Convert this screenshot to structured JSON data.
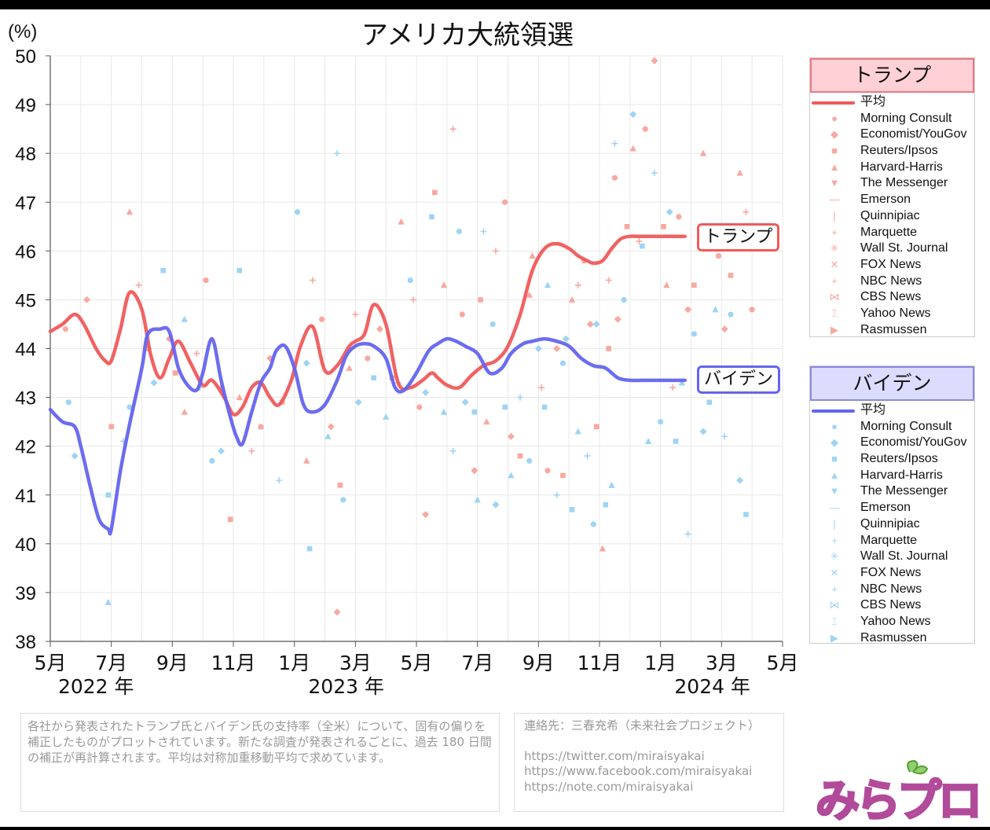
{
  "chart_data": {
    "type": "line",
    "title": "アメリカ大統領選",
    "ylabel": "(%)",
    "ylim": [
      38,
      50
    ],
    "yticks": [
      38,
      39,
      40,
      41,
      42,
      43,
      44,
      45,
      46,
      47,
      48,
      49,
      50
    ],
    "x_tick_labels": [
      "5月",
      "7月",
      "9月",
      "11月",
      "1月",
      "3月",
      "5月",
      "7月",
      "9月",
      "11月",
      "1月",
      "3月",
      "5月"
    ],
    "x_tick_months": [
      0,
      2,
      4,
      6,
      8,
      10,
      12,
      14,
      16,
      18,
      20,
      22,
      24
    ],
    "year_labels": [
      {
        "label": "2022 年",
        "month": 1.5
      },
      {
        "label": "2023 年",
        "month": 1.5
      },
      {
        "label": "2024 年",
        "month": 1.5
      }
    ],
    "year_label_months": [
      1.5,
      9.7,
      21.7
    ],
    "x_range_months": [
      0,
      24
    ],
    "x_note": "months since May 2022",
    "series": [
      {
        "name": "トランプ 平均",
        "color": "#f05a5a",
        "x": [
          0,
          0.4,
          0.8,
          1.1,
          1.5,
          1.8,
          2.0,
          2.3,
          2.6,
          3.0,
          3.3,
          3.6,
          3.9,
          4.2,
          4.6,
          5.0,
          5.3,
          5.7,
          6.0,
          6.3,
          6.6,
          6.9,
          7.2,
          7.5,
          7.9,
          8.2,
          8.6,
          9.0,
          9.4,
          9.8,
          10.0,
          10.3,
          10.6,
          11.0,
          11.4,
          11.8,
          12.2,
          12.5,
          12.7,
          13.0,
          13.4,
          13.8,
          14.2,
          14.6,
          15.0,
          15.4,
          15.8,
          16.2,
          16.6,
          17.0,
          17.3,
          17.6,
          17.8,
          18.1,
          18.4,
          18.7,
          19.0,
          19.3,
          19.6,
          19.9,
          20.2,
          20.5,
          20.8
        ],
        "values": [
          44.35,
          44.5,
          44.7,
          44.5,
          44.0,
          43.75,
          43.75,
          44.4,
          45.15,
          44.8,
          43.85,
          43.4,
          43.8,
          44.15,
          43.7,
          43.25,
          43.35,
          43.0,
          42.65,
          42.8,
          43.2,
          43.3,
          43.0,
          42.85,
          43.35,
          44.05,
          44.45,
          43.55,
          43.65,
          44.05,
          44.15,
          44.3,
          44.9,
          44.5,
          43.3,
          43.2,
          43.35,
          43.5,
          43.4,
          43.25,
          43.2,
          43.45,
          43.65,
          43.75,
          44.05,
          44.7,
          45.6,
          46.05,
          46.15,
          46.05,
          45.9,
          45.8,
          45.75,
          45.8,
          46.05,
          46.25,
          46.3,
          46.3,
          46.3,
          46.3,
          46.3,
          46.3,
          46.3
        ]
      },
      {
        "name": "バイデン 平均",
        "color": "#6464f0",
        "x": [
          0,
          0.4,
          0.8,
          1.0,
          1.3,
          1.6,
          1.9,
          2.0,
          2.3,
          2.6,
          3.0,
          3.2,
          3.6,
          3.9,
          4.2,
          4.5,
          4.8,
          5.0,
          5.3,
          5.6,
          5.9,
          6.1,
          6.3,
          6.6,
          6.9,
          7.2,
          7.4,
          7.7,
          8.0,
          8.3,
          8.6,
          9.0,
          9.4,
          9.7,
          10.0,
          10.3,
          10.6,
          11.0,
          11.3,
          11.6,
          12.0,
          12.4,
          12.7,
          13.0,
          13.3,
          13.6,
          14.0,
          14.4,
          14.8,
          15.1,
          15.5,
          15.8,
          16.2,
          16.6,
          17.0,
          17.4,
          17.8,
          18.2,
          18.6,
          19.0,
          19.4,
          19.8,
          20.2,
          20.5,
          20.8
        ],
        "values": [
          42.75,
          42.5,
          42.4,
          42.0,
          41.2,
          40.5,
          40.3,
          40.3,
          41.5,
          42.45,
          43.6,
          44.3,
          44.4,
          44.35,
          43.6,
          43.25,
          43.15,
          43.5,
          44.2,
          43.35,
          42.6,
          42.2,
          42.05,
          42.7,
          43.3,
          43.6,
          43.95,
          44.05,
          43.6,
          42.85,
          42.7,
          42.85,
          43.35,
          43.85,
          44.05,
          44.1,
          44.05,
          43.8,
          43.2,
          43.15,
          43.5,
          43.95,
          44.1,
          44.2,
          44.15,
          44.05,
          43.9,
          43.5,
          43.6,
          43.9,
          44.1,
          44.15,
          44.2,
          44.15,
          44.05,
          43.8,
          43.65,
          43.6,
          43.4,
          43.35,
          43.35,
          43.35,
          43.35,
          43.35,
          43.35
        ]
      }
    ],
    "scatter_note": "individual pollster points (pale markers)",
    "trump_points": [
      [
        0.5,
        44.4
      ],
      [
        1.2,
        45.0
      ],
      [
        2.0,
        42.4
      ],
      [
        2.6,
        46.8
      ],
      [
        2.9,
        45.3
      ],
      [
        3.2,
        44.0
      ],
      [
        3.9,
        44.2
      ],
      [
        4.1,
        43.5
      ],
      [
        4.4,
        42.7
      ],
      [
        4.8,
        43.9
      ],
      [
        5.1,
        45.4
      ],
      [
        5.6,
        43.2
      ],
      [
        5.9,
        40.5
      ],
      [
        6.2,
        43.0
      ],
      [
        6.6,
        41.9
      ],
      [
        6.9,
        42.4
      ],
      [
        7.2,
        43.8
      ],
      [
        7.6,
        42.9
      ],
      [
        8.4,
        41.7
      ],
      [
        8.6,
        45.4
      ],
      [
        8.9,
        44.6
      ],
      [
        9.2,
        42.4
      ],
      [
        9.5,
        41.2
      ],
      [
        9.8,
        43.6
      ],
      [
        10.0,
        44.7
      ],
      [
        10.4,
        43.8
      ],
      [
        10.8,
        44.4
      ],
      [
        11.2,
        43.4
      ],
      [
        11.5,
        46.6
      ],
      [
        11.9,
        45.0
      ],
      [
        12.1,
        42.8
      ],
      [
        12.3,
        40.6
      ],
      [
        12.6,
        47.2
      ],
      [
        12.9,
        45.3
      ],
      [
        13.2,
        48.5
      ],
      [
        13.5,
        44.7
      ],
      [
        13.9,
        41.5
      ],
      [
        14.1,
        45.0
      ],
      [
        14.3,
        42.5
      ],
      [
        14.6,
        46.0
      ],
      [
        14.9,
        47.0
      ],
      [
        15.1,
        42.2
      ],
      [
        15.4,
        41.8
      ],
      [
        15.8,
        45.9
      ],
      [
        16.1,
        43.2
      ],
      [
        16.3,
        41.5
      ],
      [
        16.6,
        44.0
      ],
      [
        16.8,
        41.4
      ],
      [
        17.1,
        45.0
      ],
      [
        17.3,
        45.3
      ],
      [
        17.5,
        45.8
      ],
      [
        17.7,
        44.5
      ],
      [
        17.9,
        42.4
      ],
      [
        18.1,
        39.9
      ],
      [
        18.3,
        45.4
      ],
      [
        18.5,
        47.5
      ],
      [
        18.6,
        44.6
      ],
      [
        18.9,
        46.5
      ],
      [
        19.1,
        48.1
      ],
      [
        19.3,
        46.2
      ],
      [
        19.5,
        48.5
      ],
      [
        19.8,
        49.9
      ],
      [
        20.1,
        46.5
      ],
      [
        20.2,
        45.3
      ],
      [
        20.4,
        43.2
      ],
      [
        20.6,
        46.7
      ],
      [
        20.9,
        44.8
      ],
      [
        21.1,
        45.3
      ],
      [
        21.4,
        48.0
      ],
      [
        21.7,
        46.4
      ],
      [
        21.9,
        45.9
      ],
      [
        22.1,
        44.4
      ],
      [
        22.3,
        45.5
      ],
      [
        22.6,
        47.6
      ],
      [
        22.8,
        46.8
      ],
      [
        23.0,
        44.8
      ],
      [
        9.4,
        38.6
      ],
      [
        18.3,
        44.0
      ],
      [
        15.7,
        45.1
      ]
    ],
    "biden_points": [
      [
        0.6,
        42.9
      ],
      [
        0.8,
        41.8
      ],
      [
        1.9,
        41.0
      ],
      [
        1.9,
        38.8
      ],
      [
        2.4,
        42.1
      ],
      [
        2.6,
        42.8
      ],
      [
        3.4,
        43.3
      ],
      [
        3.7,
        45.6
      ],
      [
        4.4,
        44.6
      ],
      [
        4.9,
        43.2
      ],
      [
        5.3,
        41.7
      ],
      [
        5.6,
        41.9
      ],
      [
        6.2,
        45.6
      ],
      [
        6.9,
        42.4
      ],
      [
        7.5,
        41.3
      ],
      [
        8.1,
        46.8
      ],
      [
        8.4,
        43.7
      ],
      [
        8.5,
        39.9
      ],
      [
        9.1,
        42.2
      ],
      [
        9.4,
        48.0
      ],
      [
        9.6,
        40.9
      ],
      [
        10.1,
        42.9
      ],
      [
        10.6,
        43.4
      ],
      [
        11.0,
        42.6
      ],
      [
        11.4,
        43.3
      ],
      [
        11.8,
        45.4
      ],
      [
        12.3,
        43.1
      ],
      [
        12.5,
        46.7
      ],
      [
        12.9,
        42.7
      ],
      [
        13.2,
        41.9
      ],
      [
        13.4,
        46.4
      ],
      [
        13.6,
        42.9
      ],
      [
        13.9,
        42.7
      ],
      [
        14.0,
        40.9
      ],
      [
        14.2,
        46.4
      ],
      [
        14.5,
        44.5
      ],
      [
        14.6,
        40.8
      ],
      [
        14.9,
        42.8
      ],
      [
        15.1,
        41.4
      ],
      [
        15.4,
        43.0
      ],
      [
        15.7,
        41.7
      ],
      [
        16.0,
        44.0
      ],
      [
        16.2,
        42.8
      ],
      [
        16.3,
        45.3
      ],
      [
        16.6,
        41.0
      ],
      [
        16.8,
        43.7
      ],
      [
        16.9,
        44.2
      ],
      [
        17.1,
        40.7
      ],
      [
        17.3,
        42.3
      ],
      [
        17.6,
        41.8
      ],
      [
        17.8,
        40.4
      ],
      [
        17.9,
        44.5
      ],
      [
        18.2,
        40.8
      ],
      [
        18.4,
        41.2
      ],
      [
        18.5,
        48.2
      ],
      [
        18.8,
        45.0
      ],
      [
        19.1,
        48.8
      ],
      [
        19.4,
        46.1
      ],
      [
        19.6,
        42.1
      ],
      [
        19.8,
        47.6
      ],
      [
        20.0,
        42.5
      ],
      [
        20.3,
        46.8
      ],
      [
        20.5,
        42.1
      ],
      [
        20.7,
        43.3
      ],
      [
        20.9,
        40.2
      ],
      [
        21.1,
        44.3
      ],
      [
        21.4,
        42.3
      ],
      [
        21.6,
        42.9
      ],
      [
        21.8,
        44.8
      ],
      [
        22.1,
        42.2
      ],
      [
        22.3,
        44.7
      ],
      [
        22.6,
        41.3
      ],
      [
        22.8,
        40.6
      ],
      [
        23.0,
        43.6
      ]
    ]
  },
  "legend": {
    "trump": {
      "title": "トランプ",
      "items": [
        "平均",
        "Morning Consult",
        "Economist/YouGov",
        "Reuters/Ipsos",
        "Harvard-Harris",
        "The Messenger",
        "Emerson",
        "Quinnipiac",
        "Marquette",
        "Wall St. Journal",
        "FOX News",
        "NBC News",
        "CBS News",
        "Yahoo News",
        "Rasmussen"
      ],
      "color": "#f05a5a",
      "point_color": "#f8a8a0"
    },
    "biden": {
      "title": "バイデン",
      "items": [
        "平均",
        "Morning Consult",
        "Economist/YouGov",
        "Reuters/Ipsos",
        "Harvard-Harris",
        "The Messenger",
        "Emerson",
        "Quinnipiac",
        "Marquette",
        "Wall St. Journal",
        "FOX News",
        "NBC News",
        "CBS News",
        "Yahoo News",
        "Rasmussen"
      ],
      "color": "#6464f0",
      "point_color": "#9ed4f4"
    },
    "symbols": [
      "●",
      "◆",
      "■",
      "▲",
      "▼",
      "—",
      "|",
      "+",
      "✳",
      "✕",
      "+",
      "⋈",
      "⌶",
      "▶"
    ]
  },
  "end_labels": {
    "trump": "トランプ",
    "biden": "バイデン"
  },
  "note": "各社から発表されたトランプ氏とバイデン氏の支持率（全米）について、固有の偏りを補正したものがプロットされています。新たな調査が発表されるごとに、過去 180 日間の補正が再計算されます。平均は対称加重移動平均で求めています。",
  "contact": {
    "label": "連絡先：三春充希（未来社会プロジェクト）",
    "links": [
      "https://twitter.com/miraisyakai",
      "https://www.facebook.com/miraisyakai",
      "https://note.com/miraisyakai"
    ]
  },
  "logo": {
    "text": "みらプロ"
  }
}
